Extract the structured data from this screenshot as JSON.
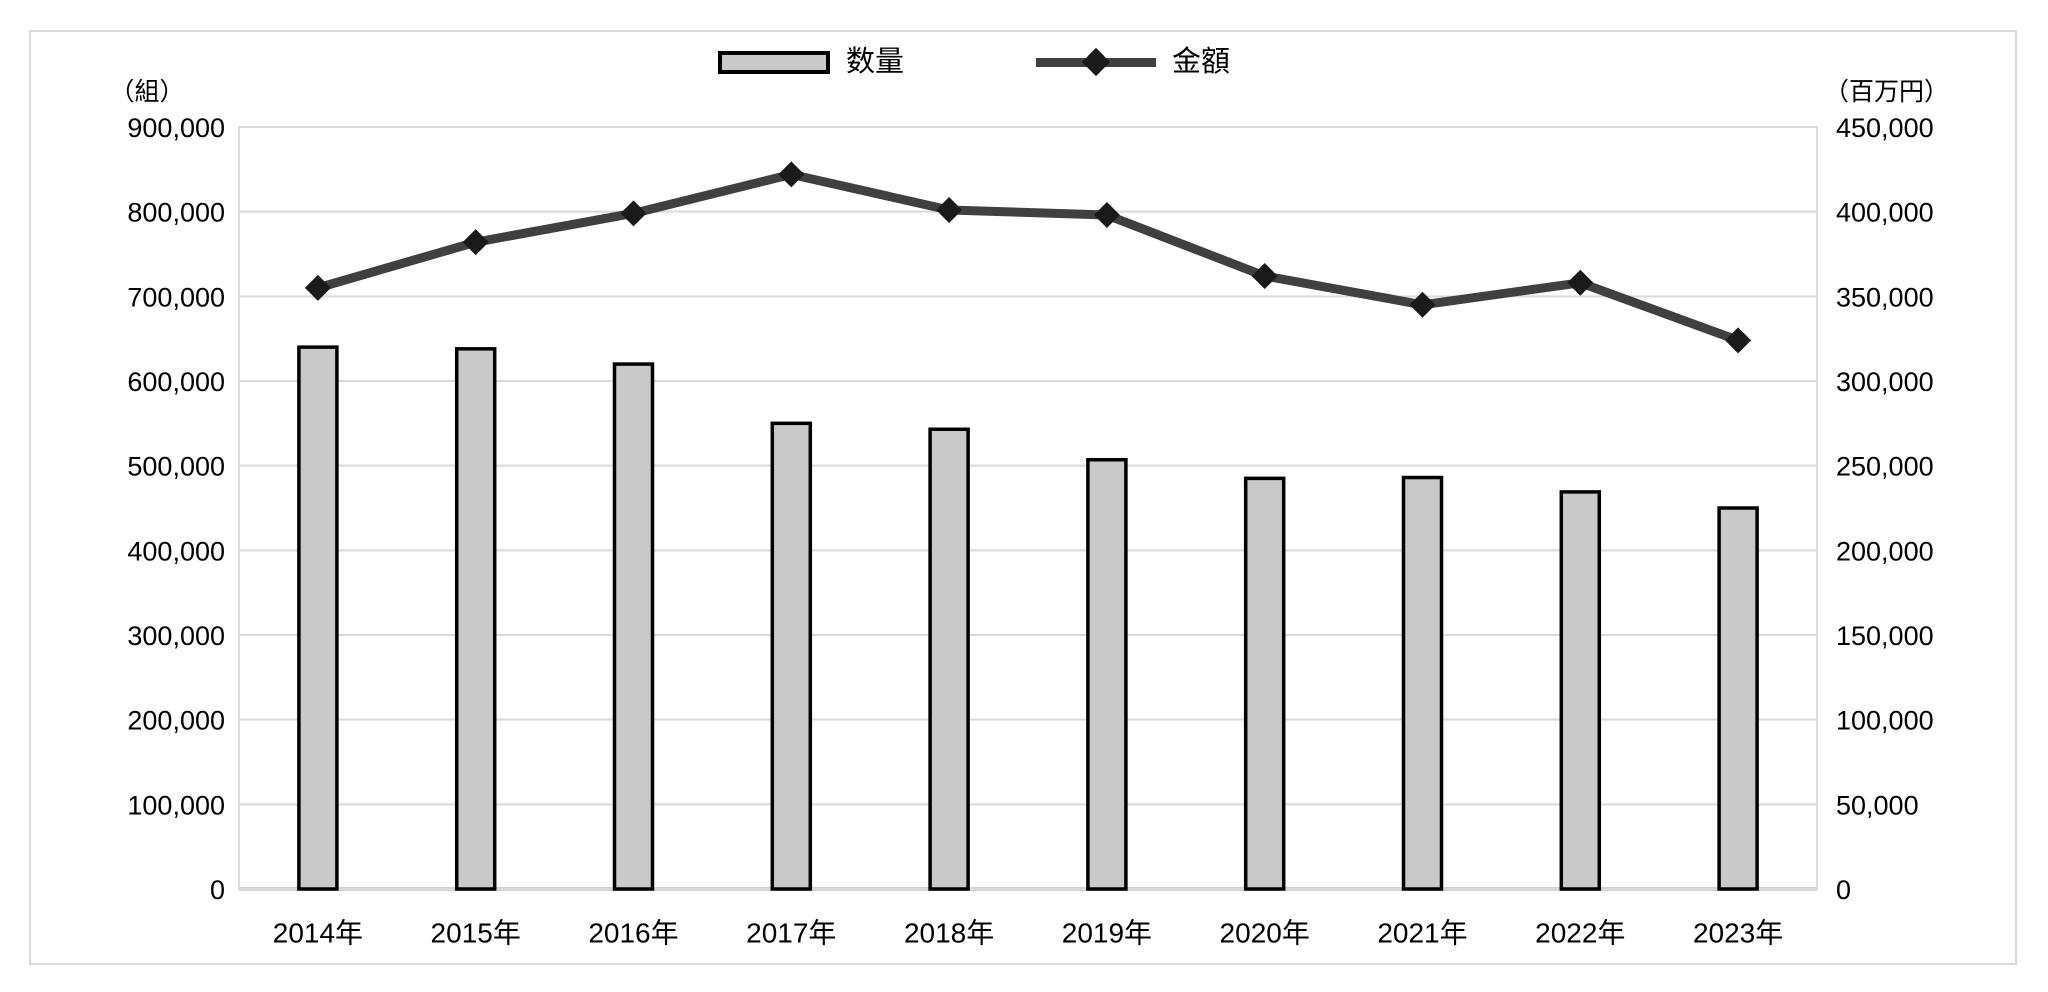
{
  "legend": {
    "quantity_label": "数量",
    "amount_label": "金額"
  },
  "axes": {
    "left_unit": "（組）",
    "right_unit": "（百万円）"
  },
  "chart_data": {
    "type": "combo-bar-line",
    "title": "",
    "categories": [
      "2014年",
      "2015年",
      "2016年",
      "2017年",
      "2018年",
      "2019年",
      "2020年",
      "2021年",
      "2022年",
      "2023年"
    ],
    "series": [
      {
        "name": "数量",
        "type": "bar",
        "axis": "left",
        "unit": "組",
        "values": [
          640000,
          638000,
          620000,
          550000,
          543000,
          507000,
          485000,
          486000,
          469000,
          450000
        ]
      },
      {
        "name": "金額",
        "type": "line",
        "axis": "right",
        "unit": "百万円",
        "values": [
          355000,
          382000,
          399000,
          422000,
          401000,
          398000,
          362000,
          345000,
          358000,
          324000
        ]
      }
    ],
    "left_axis": {
      "unit_label": "（組）",
      "min": 0,
      "max": 900000,
      "tick_interval": 100000,
      "tick_labels": [
        "0",
        "100,000",
        "200,000",
        "300,000",
        "400,000",
        "500,000",
        "600,000",
        "700,000",
        "800,000",
        "900,000"
      ]
    },
    "right_axis": {
      "unit_label": "（百万円）",
      "min": 0,
      "max": 450000,
      "tick_interval": 50000,
      "tick_labels": [
        "0",
        "50,000",
        "100,000",
        "150,000",
        "200,000",
        "250,000",
        "300,000",
        "350,000",
        "400,000",
        "450,000"
      ]
    },
    "grid": true,
    "legend_position": "top-center",
    "colors": {
      "bar_fill": "#c9c9c9",
      "bar_border": "#000000",
      "line": "#404040",
      "marker": "#1a1a1a",
      "gridline": "#d9d9d9",
      "axis_line": "#c3c3c3",
      "text": "#000000"
    }
  }
}
